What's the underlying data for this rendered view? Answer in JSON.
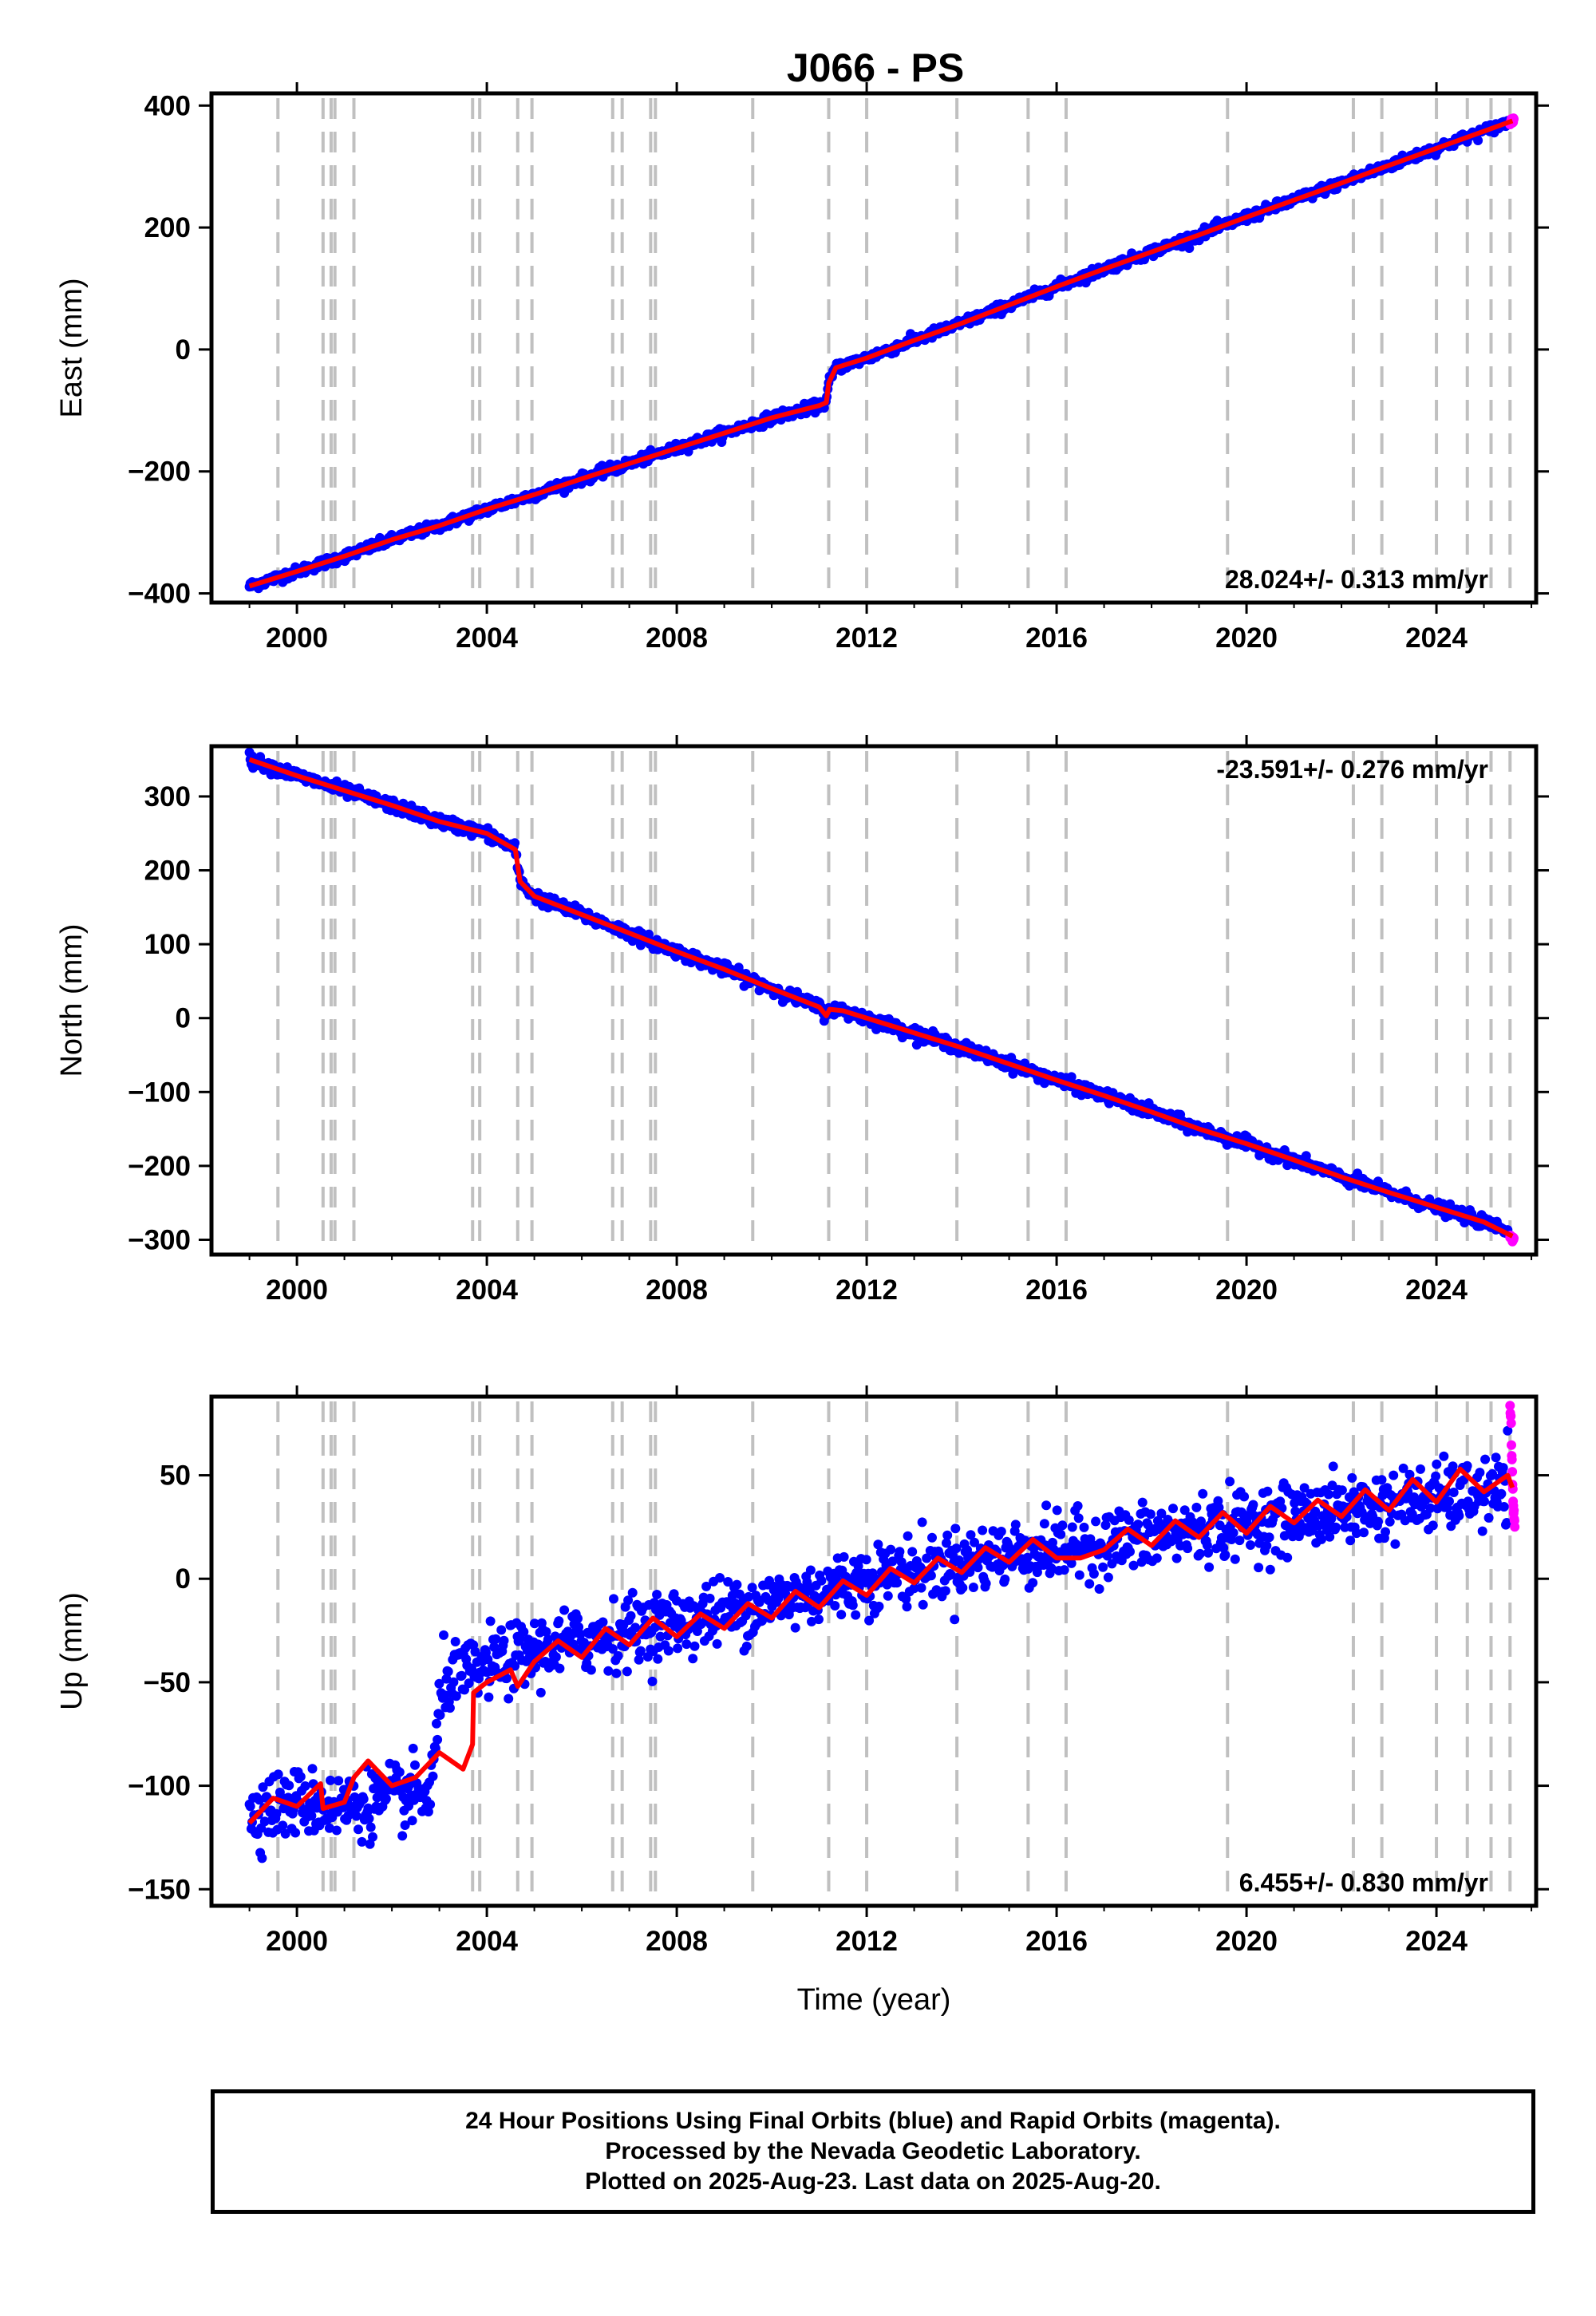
{
  "title": "J066 - PS",
  "colors": {
    "final": "#0000ff",
    "rapid": "#ff00ff",
    "model": "#ff0000",
    "event_line": "#c0c0c0",
    "frame": "#000000"
  },
  "footer": {
    "line1": "24 Hour Positions Using Final Orbits (blue) and Rapid Orbits (magenta).",
    "line2": "Processed by the Nevada Geodetic Laboratory.",
    "line3": "Plotted on 2025-Aug-23. Last data on 2025-Aug-20."
  },
  "chart_data": [
    {
      "type": "scatter",
      "title": "J066 - PS",
      "xlabel": "",
      "ylabel": "East (mm)",
      "xlim": [
        1998.2,
        2026.1
      ],
      "ylim": [
        -415,
        420
      ],
      "x_ticks": [
        2000,
        2004,
        2008,
        2012,
        2016,
        2020,
        2024
      ],
      "y_ticks": [
        -400,
        -200,
        0,
        200,
        400
      ],
      "x_tick_labels": [
        "2000",
        "2004",
        "2008",
        "2012",
        "2016",
        "2020",
        "2024"
      ],
      "y_tick_labels": [
        "−400",
        "−200",
        "0",
        "200",
        "400"
      ],
      "rate_label": "28.024+/- 0.313 mm/yr",
      "event_lines": [
        1999.6,
        2000.55,
        2000.72,
        2000.8,
        2001.2,
        2003.7,
        2003.85,
        2004.65,
        2004.95,
        2006.65,
        2006.85,
        2007.45,
        2007.55,
        2009.6,
        2011.2,
        2012.0,
        2013.9,
        2015.4,
        2016.2,
        2019.6,
        2022.25,
        2022.85,
        2024.0,
        2024.65,
        2025.15,
        2025.55
      ],
      "series": [
        {
          "name": "Final Orbits (blue)",
          "kind": "points",
          "x": [
            1999.0,
            2000.0,
            2001.0,
            2002.0,
            2003.0,
            2004.0,
            2005.0,
            2006.0,
            2007.0,
            2008.0,
            2009.0,
            2010.0,
            2011.0,
            2011.15,
            2011.2,
            2011.35,
            2012.0,
            2013.0,
            2014.0,
            2015.0,
            2016.0,
            2017.0,
            2018.0,
            2019.0,
            2020.0,
            2021.0,
            2022.0,
            2023.0,
            2024.0,
            2025.0,
            2025.5
          ],
          "y": [
            -388,
            -364,
            -339,
            -312,
            -289,
            -262,
            -238,
            -212,
            -187,
            -162,
            -137,
            -112,
            -92,
            -87,
            -55,
            -30,
            -14,
            15,
            43,
            73,
            103,
            132,
            160,
            188,
            217,
            245,
            273,
            302,
            330,
            358,
            372
          ],
          "scatter_sd": 4
        },
        {
          "name": "Rapid Orbits (magenta)",
          "kind": "points",
          "x": [
            2025.55,
            2025.58,
            2025.61,
            2025.63
          ],
          "y": [
            372,
            375,
            377,
            380
          ],
          "scatter_sd": 3
        },
        {
          "name": "Model",
          "kind": "line",
          "x": [
            1999.0,
            2000.0,
            2001.0,
            2002.0,
            2003.0,
            2004.0,
            2005.0,
            2006.0,
            2007.0,
            2008.0,
            2009.0,
            2010.0,
            2011.0,
            2011.15,
            2011.2,
            2011.35,
            2012.0,
            2013.0,
            2014.0,
            2015.0,
            2016.0,
            2017.0,
            2018.0,
            2019.0,
            2020.0,
            2021.0,
            2022.0,
            2023.0,
            2024.0,
            2025.0,
            2025.6
          ],
          "y": [
            -388,
            -364,
            -339,
            -312,
            -289,
            -262,
            -238,
            -212,
            -187,
            -162,
            -137,
            -112,
            -92,
            -87,
            -55,
            -30,
            -14,
            15,
            43,
            73,
            103,
            132,
            160,
            188,
            217,
            245,
            273,
            302,
            330,
            358,
            375
          ]
        }
      ]
    },
    {
      "type": "scatter",
      "xlabel": "",
      "ylabel": "North (mm)",
      "xlim": [
        1998.2,
        2026.1
      ],
      "ylim": [
        -320,
        368
      ],
      "x_ticks": [
        2000,
        2004,
        2008,
        2012,
        2016,
        2020,
        2024
      ],
      "y_ticks": [
        -300,
        -200,
        -100,
        0,
        100,
        200,
        300
      ],
      "x_tick_labels": [
        "2000",
        "2004",
        "2008",
        "2012",
        "2016",
        "2020",
        "2024"
      ],
      "y_tick_labels": [
        "−300",
        "−200",
        "−100",
        "0",
        "100",
        "200",
        "300"
      ],
      "rate_label": "-23.591+/- 0.276 mm/yr",
      "event_lines": [
        1999.6,
        2000.55,
        2000.72,
        2000.8,
        2001.2,
        2003.7,
        2003.85,
        2004.65,
        2004.95,
        2006.65,
        2006.85,
        2007.45,
        2007.55,
        2009.6,
        2011.2,
        2012.0,
        2013.9,
        2015.4,
        2016.2,
        2019.6,
        2022.25,
        2022.85,
        2024.0,
        2024.65,
        2025.15,
        2025.55
      ],
      "series": [
        {
          "name": "Final Orbits (blue)",
          "kind": "points",
          "x": [
            1999.0,
            2000.0,
            2001.0,
            2002.0,
            2003.0,
            2004.0,
            2004.6,
            2004.7,
            2005.0,
            2006.0,
            2007.0,
            2008.0,
            2009.0,
            2010.0,
            2011.0,
            2011.15,
            2011.22,
            2011.5,
            2012.0,
            2013.0,
            2014.0,
            2015.0,
            2016.0,
            2017.0,
            2018.0,
            2019.0,
            2020.0,
            2021.0,
            2022.0,
            2023.0,
            2024.0,
            2025.0,
            2025.5
          ],
          "y": [
            350,
            328,
            308,
            288,
            266,
            250,
            228,
            185,
            165,
            140,
            115,
            90,
            66,
            40,
            15,
            3,
            12,
            10,
            0,
            -20,
            -40,
            -62,
            -84,
            -105,
            -127,
            -150,
            -170,
            -192,
            -215,
            -236,
            -256,
            -276,
            -287
          ],
          "scatter_sd": 4
        },
        {
          "name": "Rapid Orbits (magenta)",
          "kind": "points",
          "x": [
            2025.55,
            2025.58,
            2025.61,
            2025.63
          ],
          "y": [
            -293,
            -296,
            -299,
            -302
          ],
          "scatter_sd": 3
        },
        {
          "name": "Model",
          "kind": "line",
          "x": [
            1999.0,
            2000.0,
            2001.0,
            2002.0,
            2003.0,
            2004.0,
            2004.6,
            2004.7,
            2005.0,
            2006.0,
            2007.0,
            2008.0,
            2009.0,
            2010.0,
            2011.0,
            2011.15,
            2011.22,
            2011.5,
            2012.0,
            2013.0,
            2014.0,
            2015.0,
            2016.0,
            2017.0,
            2018.0,
            2019.0,
            2020.0,
            2021.0,
            2022.0,
            2023.0,
            2024.0,
            2025.0,
            2025.6
          ],
          "y": [
            350,
            328,
            308,
            288,
            266,
            250,
            228,
            185,
            165,
            140,
            115,
            90,
            66,
            40,
            15,
            3,
            12,
            10,
            0,
            -20,
            -40,
            -62,
            -84,
            -105,
            -127,
            -150,
            -170,
            -192,
            -215,
            -236,
            -256,
            -276,
            -295
          ]
        }
      ]
    },
    {
      "type": "scatter",
      "xlabel": "Time (year)",
      "ylabel": "Up (mm)",
      "xlim": [
        1998.2,
        2026.1
      ],
      "ylim": [
        -158,
        88
      ],
      "x_ticks": [
        2000,
        2004,
        2008,
        2012,
        2016,
        2020,
        2024
      ],
      "y_ticks": [
        -150,
        -100,
        -50,
        0,
        50
      ],
      "x_tick_labels": [
        "2000",
        "2004",
        "2008",
        "2012",
        "2016",
        "2020",
        "2024"
      ],
      "y_tick_labels": [
        "−150",
        "−100",
        "−50",
        "0",
        "50"
      ],
      "rate_label": "6.455+/- 0.830 mm/yr",
      "event_lines": [
        1999.6,
        2000.55,
        2000.72,
        2000.8,
        2001.2,
        2003.7,
        2003.85,
        2004.65,
        2004.95,
        2006.65,
        2006.85,
        2007.45,
        2007.55,
        2009.6,
        2011.2,
        2012.0,
        2013.9,
        2015.4,
        2016.2,
        2019.6,
        2022.25,
        2022.85,
        2024.0,
        2024.65,
        2025.15,
        2025.55
      ],
      "series": [
        {
          "name": "Final Orbits (blue)",
          "kind": "points",
          "x": [
            1999.0,
            2000.0,
            2001.0,
            2002.0,
            2002.8,
            2003.1,
            2003.7,
            2004.0,
            2005.0,
            2006.0,
            2007.0,
            2008.0,
            2009.0,
            2010.0,
            2011.0,
            2012.0,
            2013.0,
            2014.0,
            2015.0,
            2016.0,
            2017.0,
            2018.0,
            2019.0,
            2020.0,
            2021.0,
            2022.0,
            2023.0,
            2024.0,
            2025.0,
            2025.5
          ],
          "y": [
            -112,
            -108,
            -110,
            -106,
            -104,
            -48,
            -46,
            -42,
            -35,
            -30,
            -25,
            -21,
            -16,
            -11,
            -6,
            0,
            4,
            8,
            12,
            14,
            17,
            20,
            24,
            27,
            30,
            33,
            36,
            39,
            41,
            43
          ],
          "scatter_sd": 8
        },
        {
          "name": "Rapid Orbits (magenta)",
          "kind": "points",
          "x": [
            2025.55,
            2025.57,
            2025.59,
            2025.61,
            2025.63,
            2025.65
          ],
          "y": [
            83,
            75,
            55,
            40,
            32,
            26
          ],
          "scatter_sd": 2
        },
        {
          "name": "Model",
          "kind": "line",
          "x": [
            1999.0,
            1999.5,
            2000.0,
            2000.5,
            2000.55,
            2001.0,
            2001.2,
            2001.5,
            2002.0,
            2002.5,
            2003.0,
            2003.5,
            2003.7,
            2003.72,
            2004.0,
            2004.5,
            2004.65,
            2005.0,
            2005.5,
            2006.0,
            2006.5,
            2007.0,
            2007.5,
            2008.0,
            2008.5,
            2009.0,
            2009.5,
            2010.0,
            2010.5,
            2011.0,
            2011.5,
            2012.0,
            2012.5,
            2013.0,
            2013.5,
            2014.0,
            2014.5,
            2015.0,
            2015.5,
            2016.0,
            2016.5,
            2017.0,
            2017.5,
            2018.0,
            2018.5,
            2019.0,
            2019.5,
            2020.0,
            2020.5,
            2021.0,
            2021.5,
            2022.0,
            2022.5,
            2023.0,
            2023.5,
            2024.0,
            2024.5,
            2025.0,
            2025.5,
            2025.6
          ],
          "y": [
            -118,
            -106,
            -110,
            -99,
            -111,
            -108,
            -96,
            -88,
            -100,
            -96,
            -84,
            -92,
            -80,
            -55,
            -50,
            -44,
            -52,
            -40,
            -30,
            -38,
            -24,
            -32,
            -19,
            -28,
            -17,
            -24,
            -12,
            -19,
            -6,
            -14,
            -1,
            -8,
            5,
            -2,
            10,
            3,
            15,
            8,
            19,
            10,
            10,
            14,
            24,
            16,
            28,
            20,
            32,
            22,
            35,
            27,
            38,
            30,
            43,
            33,
            48,
            37,
            53,
            42,
            50,
            44
          ]
        }
      ]
    }
  ]
}
